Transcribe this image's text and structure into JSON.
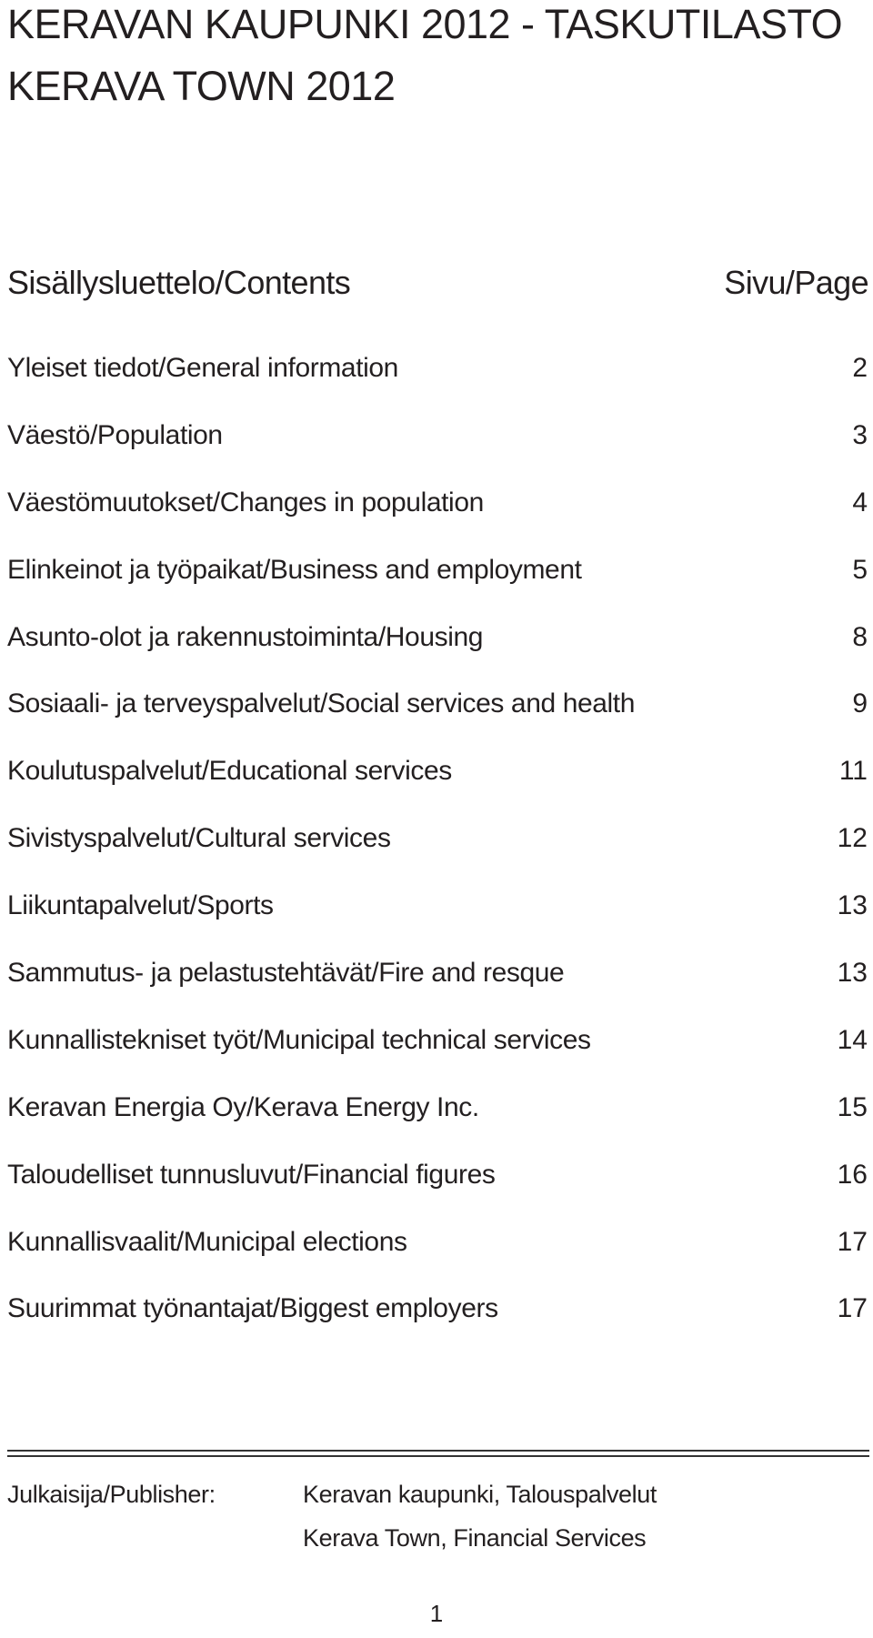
{
  "header": {
    "title_fi": "KERAVAN KAUPUNKI 2012 - TASKUTILASTO",
    "title_en": "KERAVA TOWN 2012"
  },
  "contents": {
    "heading": "Sisällysluettelo/Contents",
    "page_heading": "Sivu/Page",
    "items": [
      {
        "label": "Yleiset tiedot/General information",
        "page": "2"
      },
      {
        "label": "Väestö/Population",
        "page": "3"
      },
      {
        "label": "Väestömuutokset/Changes in population",
        "page": "4"
      },
      {
        "label": "Elinkeinot ja työpaikat/Business and employment",
        "page": "5"
      },
      {
        "label": "Asunto-olot ja rakennustoiminta/Housing",
        "page": "8"
      },
      {
        "label": "Sosiaali- ja terveyspalvelut/Social services and health",
        "page": "9"
      },
      {
        "label": "Koulutuspalvelut/Educational services",
        "page": "11"
      },
      {
        "label": "Sivistyspalvelut/Cultural services",
        "page": "12"
      },
      {
        "label": "Liikuntapalvelut/Sports",
        "page": "13"
      },
      {
        "label": "Sammutus- ja pelastustehtävät/Fire and resque",
        "page": "13"
      },
      {
        "label": "Kunnallistekniset työt/Municipal technical services",
        "page": "14"
      },
      {
        "label": "Keravan Energia Oy/Kerava Energy Inc.",
        "page": "15"
      },
      {
        "label": "Taloudelliset tunnusluvut/Financial figures",
        "page": "16"
      },
      {
        "label": "Kunnallisvaalit/Municipal elections",
        "page": "17"
      },
      {
        "label": "Suurimmat työnantajat/Biggest employers",
        "page": "17"
      }
    ]
  },
  "publisher": {
    "label": "Julkaisija/Publisher:",
    "line1": "Keravan kaupunki, Talouspalvelut",
    "line2": "Kerava Town, Financial Services"
  },
  "footer": {
    "page_number": "1"
  }
}
